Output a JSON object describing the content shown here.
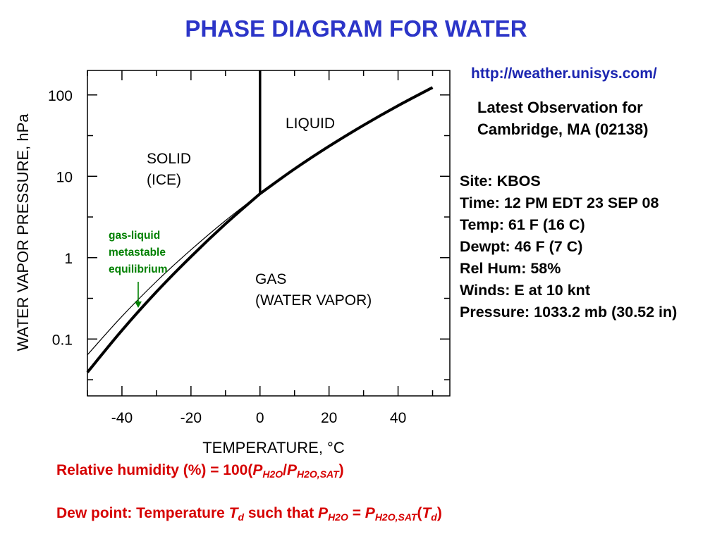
{
  "title": "PHASE DIAGRAM FOR WATER",
  "diagram": {
    "ylabel": "WATER VAPOR PRESSURE, hPa",
    "xlabel": "TEMPERATURE, °C",
    "x_ticks": [
      "-40",
      "-20",
      "0",
      "20",
      "40"
    ],
    "x_tick_values": [
      -40,
      -20,
      0,
      20,
      40
    ],
    "y_ticks": [
      "100",
      "10",
      "1",
      "0.1"
    ],
    "y_tick_values": [
      100,
      10,
      1,
      0.1
    ],
    "xlim": [
      -50,
      55
    ],
    "ylim_log": [
      0.02,
      200
    ],
    "y_scale": "log",
    "regions": {
      "liquid": "LIQUID",
      "solid_line1": "SOLID",
      "solid_line2": "(ICE)",
      "gas_line1": "GAS",
      "gas_line2": "(WATER VAPOR)"
    },
    "annotation": {
      "line1": "gas-liquid",
      "line2": "metastable",
      "line3": "equilibrium",
      "color": "#008000"
    },
    "curves": {
      "sublimation": [
        [
          -50,
          0.039
        ],
        [
          -40,
          0.128
        ],
        [
          -30,
          0.38
        ],
        [
          -20,
          1.03
        ],
        [
          -10,
          2.6
        ],
        [
          0,
          6.11
        ]
      ],
      "vaporization": [
        [
          0,
          6.11
        ],
        [
          10,
          12.3
        ],
        [
          20,
          23.4
        ],
        [
          30,
          42.4
        ],
        [
          40,
          73.8
        ],
        [
          50,
          123.4
        ]
      ],
      "metastable": [
        [
          -50,
          0.064
        ],
        [
          -40,
          0.19
        ],
        [
          -30,
          0.51
        ],
        [
          -20,
          1.25
        ],
        [
          -10,
          2.86
        ],
        [
          0,
          6.11
        ]
      ],
      "melting": [
        [
          0,
          6.11
        ],
        [
          0,
          200
        ]
      ]
    }
  },
  "source_url": "http://weather.unisys.com/",
  "observation": {
    "heading_line1": "Latest Observation for",
    "heading_line2": "Cambridge, MA (02138)",
    "lines": [
      "Site: KBOS",
      "Time: 12 PM EDT 23 SEP 08",
      "Temp: 61 F (16 C)",
      "Dewpt: 46 F (7 C)",
      "Rel Hum: 58%",
      "Winds: E at 10 knt",
      "Pressure: 1033.2 mb (30.52 in)"
    ]
  },
  "formulas": {
    "rh_prefix": "Relative humidity (%) = 100(",
    "rh_p1": "P",
    "rh_p1_sub": "H2O",
    "rh_slash": "/",
    "rh_p2": "P",
    "rh_p2_sub": "H2O,SAT",
    "rh_close": ")",
    "dew_prefix": "Dew point: Temperature ",
    "dew_T": "T",
    "dew_T_sub": "d",
    "dew_mid": " such that ",
    "dew_p1": "P",
    "dew_p1_sub": "H2O",
    "dew_eq": " = ",
    "dew_p2": "P",
    "dew_p2_sub": "H2O,SAT",
    "dew_paren_open": "(",
    "dew_T2": "T",
    "dew_T2_sub": "d",
    "dew_paren_close": ")"
  }
}
